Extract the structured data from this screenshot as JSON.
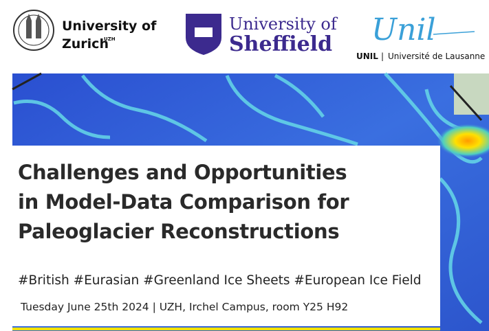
{
  "logos": {
    "zurich": {
      "name": "University of",
      "place": "Zurich",
      "abbr": "UZH"
    },
    "sheffield": {
      "name": "University of",
      "place": "Sheffield"
    },
    "lausanne": {
      "mark": "Unil",
      "abbr": "UNIL",
      "separator": "|",
      "name": "Université de Lausanne"
    }
  },
  "title": [
    "Challenges and Opportunities",
    "in Model-Data Comparison for",
    "Paleoglacier Reconstructions"
  ],
  "tags": "#British #Eurasian #Greenland Ice Sheets #European Ice Field",
  "details": "Tuesday June 25th 2024 | UZH, Irchel Campus, room Y25 H92"
}
